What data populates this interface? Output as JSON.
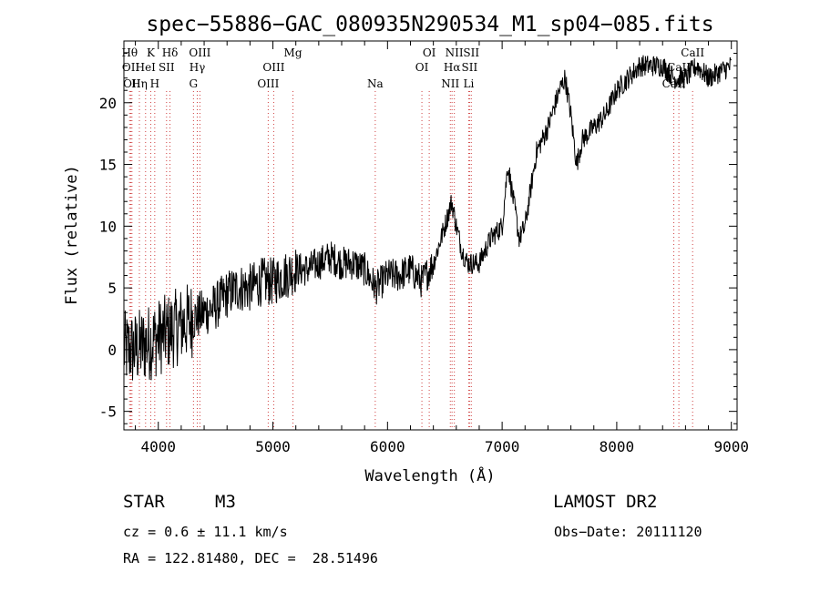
{
  "chart_data": {
    "type": "line",
    "title": "spec−55886−GAC_080935N290534_M1_sp04−085.fits",
    "xlabel": "Wavelength (Å)",
    "ylabel": "Flux (relative)",
    "xlim": [
      3700,
      9050
    ],
    "ylim": [
      -6.5,
      25
    ],
    "x_ticks": [
      4000,
      5000,
      6000,
      7000,
      8000,
      9000
    ],
    "y_ticks": [
      -5,
      0,
      5,
      10,
      15,
      20
    ],
    "grid": false,
    "series": [
      {
        "x": [
          3700,
          3800,
          3900,
          4000,
          4100,
          4200,
          4300,
          4400,
          4500,
          4600,
          4700,
          4800,
          4900,
          5000,
          5100,
          5200,
          5300,
          5400,
          5500,
          5600,
          5700,
          5800,
          5900,
          6000,
          6100,
          6200,
          6300,
          6400,
          6500,
          6560,
          6600,
          6650,
          6700,
          6800,
          6900,
          7000,
          7050,
          7100,
          7150,
          7200,
          7300,
          7400,
          7500,
          7550,
          7600,
          7650,
          7700,
          7800,
          7900,
          8000,
          8100,
          8200,
          8300,
          8400,
          8500,
          8600,
          8700,
          8800,
          8900,
          9000
        ],
        "y": [
          0,
          0,
          0.5,
          1,
          1.5,
          2,
          2.5,
          3,
          3.5,
          4.5,
          5,
          5,
          5.5,
          5.5,
          6,
          6.5,
          6.5,
          7,
          7.5,
          7,
          7,
          6.5,
          5,
          6,
          6,
          6.5,
          5.5,
          7,
          10,
          12,
          10,
          8,
          7,
          7,
          9,
          10,
          15,
          12,
          9,
          10,
          16,
          18,
          21,
          22,
          19,
          15,
          17,
          18,
          19,
          21,
          22,
          23,
          23,
          23,
          22,
          22,
          23,
          22,
          22.5,
          23
        ]
      }
    ],
    "line_markers": [
      {
        "wl": 3750,
        "row": 0,
        "label": "Hθ"
      },
      {
        "wl": 3760,
        "row": 1,
        "label": "OII"
      },
      {
        "wl": 3770,
        "row": 2,
        "label": "OII"
      },
      {
        "wl": 3835,
        "row": 2,
        "label": "Hη"
      },
      {
        "wl": 3889,
        "row": 1,
        "label": "HeI"
      },
      {
        "wl": 3934,
        "row": 0,
        "label": "K"
      },
      {
        "wl": 3969,
        "row": 2,
        "label": "H"
      },
      {
        "wl": 4072,
        "row": 1,
        "label": "SII"
      },
      {
        "wl": 4102,
        "row": 0,
        "label": "Hδ"
      },
      {
        "wl": 4307,
        "row": 2,
        "label": "G"
      },
      {
        "wl": 4340,
        "row": 1,
        "label": "Hγ"
      },
      {
        "wl": 4363,
        "row": 0,
        "label": "OIII"
      },
      {
        "wl": 4959,
        "row": 2,
        "label": "OIII"
      },
      {
        "wl": 5007,
        "row": 1,
        "label": "OIII"
      },
      {
        "wl": 5175,
        "row": 0,
        "label": "Mg"
      },
      {
        "wl": 5893,
        "row": 2,
        "label": "Na"
      },
      {
        "wl": 6300,
        "row": 1,
        "label": "OI"
      },
      {
        "wl": 6364,
        "row": 0,
        "label": "OI"
      },
      {
        "wl": 6548,
        "row": 2,
        "label": "NII"
      },
      {
        "wl": 6563,
        "row": 1,
        "label": "Hα"
      },
      {
        "wl": 6583,
        "row": 0,
        "label": "NII"
      },
      {
        "wl": 6708,
        "row": 2,
        "label": "Li"
      },
      {
        "wl": 6716,
        "row": 1,
        "label": "SII"
      },
      {
        "wl": 6731,
        "row": 0,
        "label": "SII"
      },
      {
        "wl": 8498,
        "row": 2,
        "label": "CaII"
      },
      {
        "wl": 8542,
        "row": 1,
        "label": "CaII"
      },
      {
        "wl": 8662,
        "row": 0,
        "label": "CaII"
      }
    ]
  },
  "info": {
    "object_class": "STAR",
    "subclass": "M3",
    "survey": "LAMOST DR2",
    "cz": "cz = 0.6 ± 11.1 km/s",
    "obs_date": "Obs−Date: 20111120",
    "coords": "RA = 122.81480, DEC =  28.51496"
  }
}
